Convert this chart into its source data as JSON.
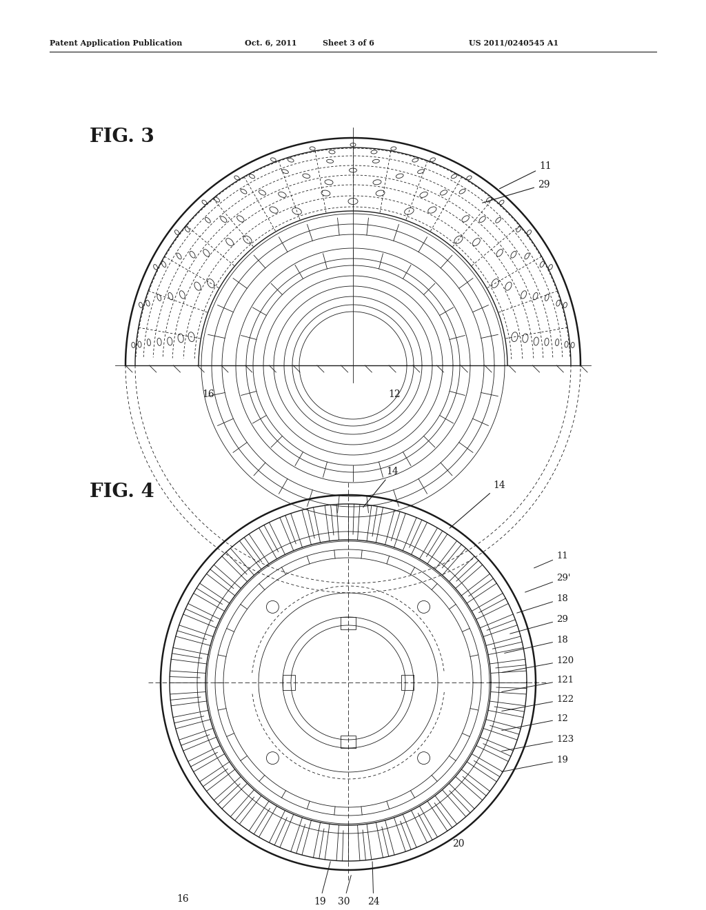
{
  "bg_color": "#ffffff",
  "line_color": "#1a1a1a",
  "header_text": "Patent Application Publication",
  "header_date": "Oct. 6, 2011",
  "header_sheet": "Sheet 3 of 6",
  "header_patent": "US 2011/0240545 A1",
  "fig3_label": "FIG. 3",
  "fig4_label": "FIG. 4"
}
